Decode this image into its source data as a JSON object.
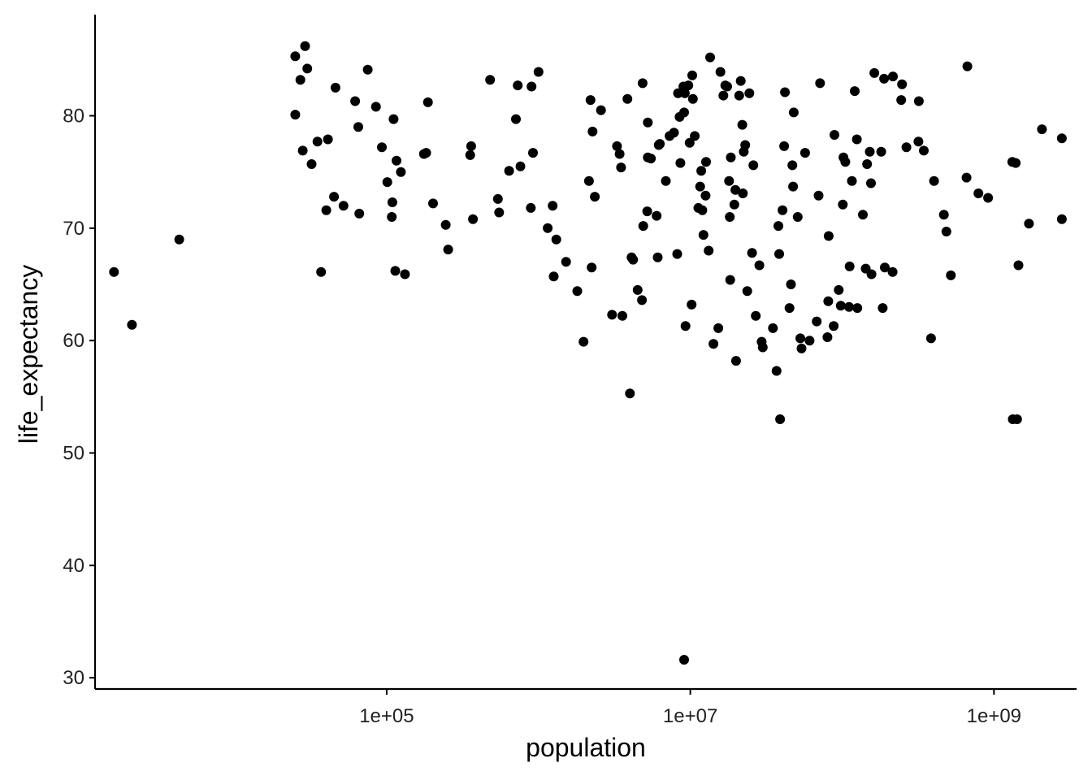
{
  "chart_data": {
    "type": "scatter",
    "title": "",
    "xlabel": "population",
    "ylabel": "life_expectancy",
    "x_scale": "log10",
    "xlim": [
      1200.0,
      3500000000.0
    ],
    "ylim": [
      29,
      89
    ],
    "x_ticks": [
      100000,
      10000000,
      1000000000
    ],
    "x_tick_labels": [
      "1e+05",
      "1e+07",
      "1e+09"
    ],
    "y_ticks": [
      30,
      40,
      50,
      60,
      70,
      80
    ],
    "y_tick_labels": [
      "30",
      "40",
      "50",
      "60",
      "70",
      "80"
    ],
    "grid": false,
    "legend": "none",
    "point_color": "#000000",
    "points": [
      [
        1600,
        66.1
      ],
      [
        2100,
        61.4
      ],
      [
        4300,
        69.0
      ],
      [
        25000,
        80.1
      ],
      [
        25000,
        85.3
      ],
      [
        27000,
        83.2
      ],
      [
        28000,
        76.9
      ],
      [
        29000,
        86.2
      ],
      [
        30000,
        84.2
      ],
      [
        32000,
        75.7
      ],
      [
        35000,
        77.7
      ],
      [
        37000,
        66.1
      ],
      [
        40000,
        71.6
      ],
      [
        41000,
        77.9
      ],
      [
        45000,
        72.8
      ],
      [
        46000,
        82.5
      ],
      [
        52000,
        72.0
      ],
      [
        62000,
        81.3
      ],
      [
        65000,
        79.0
      ],
      [
        66000,
        71.3
      ],
      [
        75000,
        84.1
      ],
      [
        85000,
        80.8
      ],
      [
        93000,
        77.2
      ],
      [
        101000,
        74.1
      ],
      [
        109000,
        72.3
      ],
      [
        108000,
        71.0
      ],
      [
        111000,
        79.7
      ],
      [
        116000,
        76.0
      ],
      [
        114000,
        66.2
      ],
      [
        124000,
        75.0
      ],
      [
        132000,
        65.9
      ],
      [
        176000,
        76.6
      ],
      [
        182000,
        76.7
      ],
      [
        187000,
        81.2
      ],
      [
        202000,
        72.2
      ],
      [
        245000,
        70.3
      ],
      [
        254000,
        68.1
      ],
      [
        360000,
        77.3
      ],
      [
        355000,
        76.5
      ],
      [
        370000,
        70.8
      ],
      [
        480000,
        83.2
      ],
      [
        540000,
        72.6
      ],
      [
        550000,
        71.4
      ],
      [
        640000,
        75.1
      ],
      [
        710000,
        79.7
      ],
      [
        760000,
        75.5
      ],
      [
        730000,
        82.7
      ],
      [
        890000,
        71.8
      ],
      [
        920000,
        76.7
      ],
      [
        900000,
        82.6
      ],
      [
        1000000,
        83.9
      ],
      [
        1150000,
        70.0
      ],
      [
        1240000,
        72.0
      ],
      [
        1260000,
        65.7
      ],
      [
        1310000,
        69.0
      ],
      [
        1520000,
        67.0
      ],
      [
        1800000,
        64.4
      ],
      [
        1980000,
        59.9
      ],
      [
        2150000,
        74.2
      ],
      [
        2200000,
        81.4
      ],
      [
        2240000,
        66.5
      ],
      [
        2270000,
        78.6
      ],
      [
        2350000,
        72.8
      ],
      [
        2580000,
        80.5
      ],
      [
        3050000,
        62.3
      ],
      [
        3290000,
        77.3
      ],
      [
        3420000,
        76.6
      ],
      [
        3500000,
        75.4
      ],
      [
        3570000,
        62.2
      ],
      [
        3850000,
        81.5
      ],
      [
        4100000,
        67.4
      ],
      [
        4000000,
        55.3
      ],
      [
        4200000,
        67.2
      ],
      [
        4500000,
        64.5
      ],
      [
        4850000,
        82.9
      ],
      [
        4800000,
        63.6
      ],
      [
        4900000,
        70.2
      ],
      [
        5200000,
        71.5
      ],
      [
        5250000,
        79.4
      ],
      [
        5250000,
        76.3
      ],
      [
        5500000,
        76.2
      ],
      [
        6000000,
        71.1
      ],
      [
        6100000,
        67.4
      ],
      [
        6200000,
        77.4
      ],
      [
        6300000,
        77.5
      ],
      [
        6900000,
        74.2
      ],
      [
        7300000,
        78.2
      ],
      [
        7800000,
        78.5
      ],
      [
        8200000,
        67.7
      ],
      [
        8300000,
        82.0
      ],
      [
        8500000,
        79.9
      ],
      [
        8600000,
        75.8
      ],
      [
        9000000,
        82.6
      ],
      [
        9100000,
        80.3
      ],
      [
        9200000,
        82.0
      ],
      [
        9300000,
        61.3
      ],
      [
        9100000,
        31.6
      ],
      [
        9700000,
        82.7
      ],
      [
        9900000,
        77.6
      ],
      [
        10200000,
        63.2
      ],
      [
        10300000,
        83.6
      ],
      [
        10400000,
        81.5
      ],
      [
        10700000,
        78.2
      ],
      [
        11300000,
        71.8
      ],
      [
        11600000,
        73.7
      ],
      [
        11800000,
        75.1
      ],
      [
        12000000,
        71.6
      ],
      [
        12200000,
        69.4
      ],
      [
        12600000,
        72.9
      ],
      [
        12700000,
        75.9
      ],
      [
        13200000,
        68.0
      ],
      [
        13500000,
        85.2
      ],
      [
        14200000,
        59.7
      ],
      [
        15300000,
        61.1
      ],
      [
        15800000,
        83.9
      ],
      [
        16500000,
        81.8
      ],
      [
        17000000,
        82.7
      ],
      [
        17500000,
        82.6
      ],
      [
        18000000,
        74.2
      ],
      [
        18200000,
        71.0
      ],
      [
        18300000,
        65.4
      ],
      [
        18500000,
        76.3
      ],
      [
        19500000,
        72.1
      ],
      [
        19800000,
        73.4
      ],
      [
        20000000,
        58.2
      ],
      [
        21000000,
        81.8
      ],
      [
        21500000,
        83.1
      ],
      [
        22000000,
        79.2
      ],
      [
        22500000,
        76.8
      ],
      [
        22200000,
        73.1
      ],
      [
        23000000,
        77.4
      ],
      [
        23700000,
        64.4
      ],
      [
        24500000,
        82.0
      ],
      [
        25500000,
        67.8
      ],
      [
        26000000,
        75.6
      ],
      [
        27000000,
        62.2
      ],
      [
        28500000,
        66.7
      ],
      [
        29500000,
        59.9
      ],
      [
        30000000,
        59.4
      ],
      [
        35000000,
        61.1
      ],
      [
        37000000,
        57.3
      ],
      [
        38000000,
        70.2
      ],
      [
        38500000,
        67.7
      ],
      [
        39000000,
        53.0
      ],
      [
        40500000,
        71.6
      ],
      [
        41500000,
        77.3
      ],
      [
        42000000,
        82.1
      ],
      [
        45000000,
        62.9
      ],
      [
        46000000,
        65.0
      ],
      [
        47000000,
        75.6
      ],
      [
        47500000,
        73.7
      ],
      [
        48000000,
        80.3
      ],
      [
        51000000,
        71.0
      ],
      [
        53000000,
        60.2
      ],
      [
        54000000,
        59.3
      ],
      [
        57000000,
        76.7
      ],
      [
        61000000,
        60.0
      ],
      [
        68000000,
        61.7
      ],
      [
        70000000,
        72.9
      ],
      [
        71500000,
        82.9
      ],
      [
        80000000,
        60.3
      ],
      [
        81000000,
        63.5
      ],
      [
        81500000,
        69.3
      ],
      [
        88000000,
        61.3
      ],
      [
        89000000,
        78.3
      ],
      [
        95000000,
        64.5
      ],
      [
        98000000,
        63.1
      ],
      [
        101000000,
        72.1
      ],
      [
        102000000,
        76.3
      ],
      [
        105000000,
        75.9
      ],
      [
        111000000,
        63.0
      ],
      [
        112000000,
        66.6
      ],
      [
        116000000,
        74.2
      ],
      [
        121000000,
        82.2
      ],
      [
        125000000,
        77.9
      ],
      [
        126000000,
        62.9
      ],
      [
        137000000,
        71.2
      ],
      [
        143000000,
        66.4
      ],
      [
        146000000,
        75.7
      ],
      [
        152000000,
        76.8
      ],
      [
        155000000,
        74.0
      ],
      [
        156000000,
        65.9
      ],
      [
        163000000,
        83.8
      ],
      [
        181000000,
        76.8
      ],
      [
        185000000,
        62.9
      ],
      [
        189000000,
        83.3
      ],
      [
        191000000,
        66.5
      ],
      [
        215000000,
        66.1
      ],
      [
        216000000,
        83.5
      ],
      [
        245000000,
        81.4
      ],
      [
        248000000,
        82.8
      ],
      [
        265000000,
        77.2
      ],
      [
        318000000,
        77.7
      ],
      [
        320000000,
        81.3
      ],
      [
        345000000,
        76.9
      ],
      [
        385000000,
        60.2
      ],
      [
        403000000,
        74.2
      ],
      [
        468000000,
        71.2
      ],
      [
        486000000,
        69.7
      ],
      [
        520000000,
        65.8
      ],
      [
        660000000,
        74.5
      ],
      [
        668000000,
        84.4
      ],
      [
        790000000,
        73.1
      ],
      [
        915000000,
        72.7
      ],
      [
        1320000000,
        75.9
      ],
      [
        1330000000,
        53.0
      ],
      [
        1450000000,
        66.7
      ],
      [
        1700000000,
        70.4
      ],
      [
        2070000000,
        78.8
      ],
      [
        1420000000,
        53.0
      ],
      [
        1390000000,
        75.8
      ],
      [
        2800000000,
        78.0
      ],
      [
        2800000000,
        70.8
      ]
    ]
  }
}
